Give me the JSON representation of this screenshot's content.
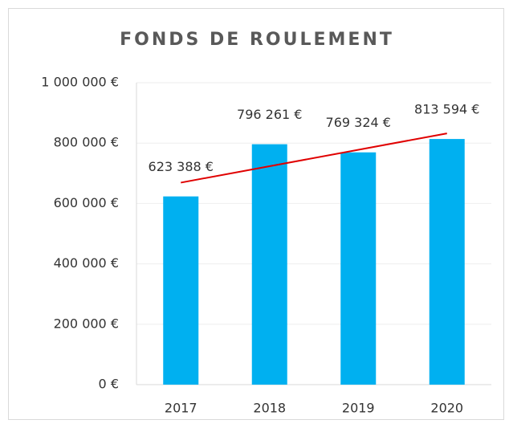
{
  "chart_data": {
    "type": "bar",
    "title": "FONDS DE ROULEMENT",
    "categories": [
      "2017",
      "2018",
      "2019",
      "2020"
    ],
    "values": [
      623388,
      796261,
      769324,
      813594
    ],
    "value_labels": [
      "623 388 €",
      "796 261 €",
      "769 324 €",
      "813 594 €"
    ],
    "color": "#00b0f0",
    "ylim": [
      0,
      1000000
    ],
    "yticks": [
      {
        "value": 0,
        "label": "0 €"
      },
      {
        "value": 200000,
        "label": "200 000 €"
      },
      {
        "value": 400000,
        "label": "400 000 €"
      },
      {
        "value": 600000,
        "label": "600 000 €"
      },
      {
        "value": 800000,
        "label": "800 000 €"
      },
      {
        "value": 1000000,
        "label": "1 000 000 €"
      }
    ],
    "grid": true,
    "trendline": {
      "type": "linear",
      "color": "#e00000"
    }
  }
}
